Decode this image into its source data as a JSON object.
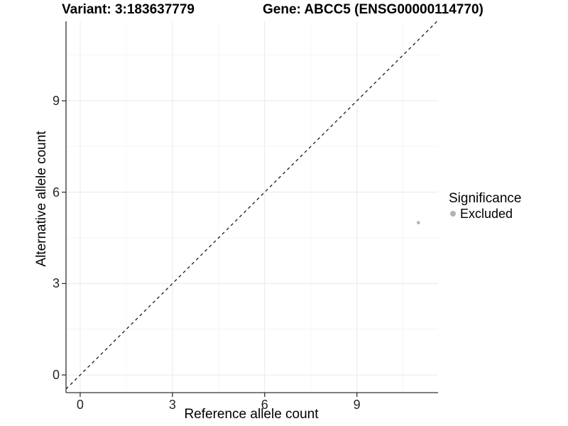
{
  "header": {
    "variant_title": "Variant: 3:183637779",
    "gene_title": "Gene: ABCC5 (ENSG00000114770)"
  },
  "legend": {
    "title": "Significance",
    "items": [
      {
        "label": "Excluded",
        "color": "#b3b3b3"
      }
    ],
    "position": "right"
  },
  "chart_data": {
    "type": "scatter",
    "title": "Variant: 3:183637779  Gene: ABCC5 (ENSG00000114770)",
    "xlabel": "Reference allele count",
    "ylabel": "Alternative allele count",
    "x_ticks": [
      0,
      3,
      6,
      9
    ],
    "y_ticks": [
      0,
      3,
      6,
      9
    ],
    "x_minor_ticks": [
      1.5,
      4.5,
      7.5,
      10.5
    ],
    "y_minor_ticks": [
      1.5,
      4.5,
      7.5,
      10.5
    ],
    "xlim": [
      -0.46,
      11.64
    ],
    "ylim": [
      -0.58,
      11.61
    ],
    "grid": true,
    "identity_line": {
      "style": "dashed",
      "color": "#1a1a1a",
      "equation": "y = x"
    },
    "series": [
      {
        "name": "Excluded",
        "color": "#b3b3b3",
        "points": [
          {
            "x": 11,
            "y": 5
          }
        ]
      }
    ],
    "colors": {
      "background": "#ffffff",
      "grid_major": "#ebebeb",
      "grid_minor": "#f4f4f4",
      "axis_line": "#333333",
      "tick_mark": "#333333",
      "tick_text": "#262626"
    }
  }
}
